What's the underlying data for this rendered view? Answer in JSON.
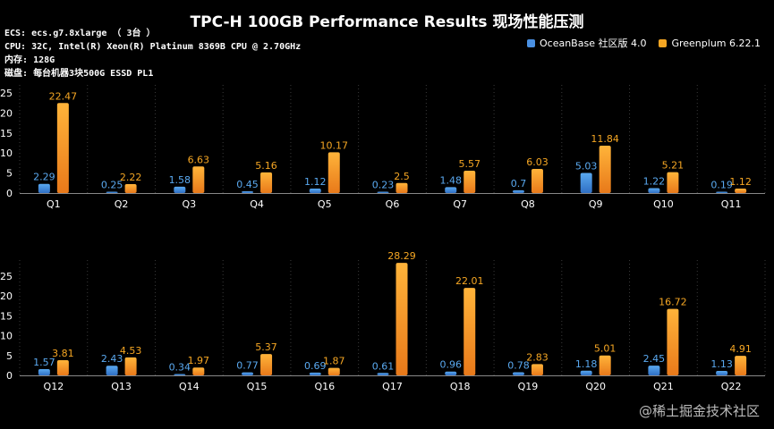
{
  "title": "TPC-H 100GB Performance Results 现场性能压测",
  "specs": {
    "ecs_label": "ECS:",
    "ecs_value": "ecs.g7.8xlarge （ 3台 ）",
    "cpu_label": "CPU:",
    "cpu_value": "32C, Intel(R) Xeon(R) Platinum 8369B CPU @ 2.70GHz",
    "mem_label": "内存:",
    "mem_value": "128G",
    "disk_label": "磁盘:",
    "disk_value": "每台机器3块500G ESSD PL1"
  },
  "legend": {
    "oceanbase": "OceanBase 社区版 4.0",
    "greenplum": "Greenplum 6.22.1"
  },
  "colors": {
    "oceanbase": "#4a90e2",
    "greenplum": "#f5a623",
    "oceanbase_label": "#5aa9f0",
    "greenplum_label": "#f5a623"
  },
  "watermark": "@稀土掘金技术社区",
  "chart_data": [
    {
      "type": "bar",
      "title": "TPC-H 100GB Performance Results 现场性能压测",
      "categories": [
        "Q1",
        "Q2",
        "Q3",
        "Q4",
        "Q5",
        "Q6",
        "Q7",
        "Q8",
        "Q9",
        "Q10",
        "Q11"
      ],
      "series": [
        {
          "name": "OceanBase 社区版 4.0",
          "values": [
            2.29,
            0.25,
            1.58,
            0.45,
            1.12,
            0.23,
            1.48,
            0.7,
            5.03,
            1.22,
            0.19
          ]
        },
        {
          "name": "Greenplum 6.22.1",
          "values": [
            22.47,
            2.22,
            6.63,
            5.16,
            10.17,
            2.5,
            5.57,
            6.03,
            11.84,
            5.21,
            1.12
          ]
        }
      ],
      "yticks": [
        0,
        5,
        10,
        15,
        20,
        25
      ],
      "ylim": [
        0,
        27
      ],
      "xlabel": "",
      "ylabel": ""
    },
    {
      "type": "bar",
      "categories": [
        "Q12",
        "Q13",
        "Q14",
        "Q15",
        "Q16",
        "Q17",
        "Q18",
        "Q19",
        "Q20",
        "Q21",
        "Q22"
      ],
      "series": [
        {
          "name": "OceanBase 社区版 4.0",
          "values": [
            1.57,
            2.43,
            0.34,
            0.77,
            0.69,
            0.61,
            0.96,
            0.78,
            1.18,
            2.45,
            1.13
          ]
        },
        {
          "name": "Greenplum 6.22.1",
          "values": [
            3.81,
            4.53,
            1.97,
            5.37,
            1.87,
            28.29,
            22.01,
            2.83,
            5.01,
            16.72,
            4.91
          ]
        }
      ],
      "yticks": [
        0,
        5,
        10,
        15,
        20,
        25
      ],
      "ylim": [
        0,
        29
      ],
      "xlabel": "",
      "ylabel": ""
    }
  ]
}
